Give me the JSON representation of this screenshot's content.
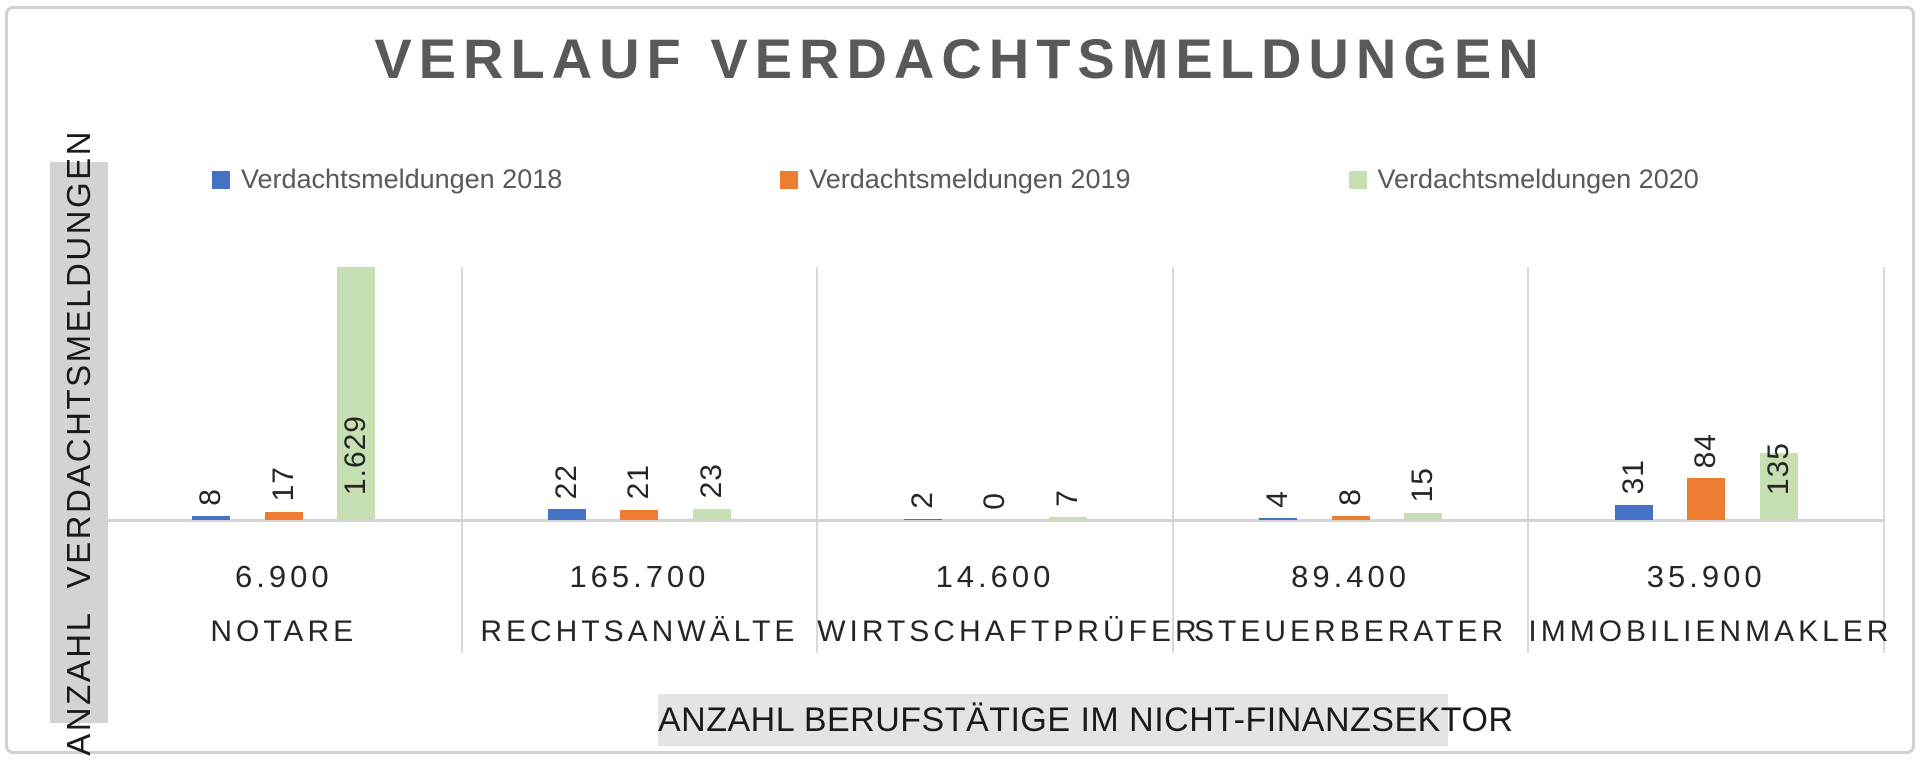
{
  "title": "VERLAUF VERDACHTSMELDUNGEN",
  "legend": [
    {
      "label": "Verdachtsmeldungen 2018",
      "color": "#4472C4"
    },
    {
      "label": "Verdachtsmeldungen 2019",
      "color": "#ED7D31"
    },
    {
      "label": "Verdachtsmeldungen 2020",
      "color": "#C6E0B4"
    }
  ],
  "axes": {
    "y_title": "ANZAHL  VERDACHTSMELDUNGEN",
    "x_title": "ANZAHL BERUFSTÄTIGE IM NICHT-FINANZSEKTOR"
  },
  "colors": {
    "series_2018": "#4472C4",
    "series_2019": "#ED7D31",
    "series_2020": "#C6E0B4",
    "title_text": "#595959",
    "legend_text": "#595959",
    "label_text": "#262626",
    "gridline": "#d9d9d9",
    "baseline": "#d4d4d4",
    "y_title_bg": "#d3d3d3",
    "x_title_bg": "#e4e4e4",
    "frame_border": "#cfd1d2"
  },
  "chart_data": {
    "type": "bar",
    "title": "VERLAUF VERDACHTSMELDUNGEN",
    "categories": [
      "NOTARE",
      "RECHTSANWÄLTE",
      "WIRTSCHAFTPRÜFER",
      "STEUERBERATER",
      "IMMOBILIENMAKLER"
    ],
    "workforce_labels": [
      "6.900",
      "165.700",
      "14.600",
      "89.400",
      "35.900"
    ],
    "series": [
      {
        "name": "Verdachtsmeldungen 2018",
        "color": "#4472C4",
        "values": [
          8,
          22,
          2,
          4,
          31
        ],
        "display": [
          "8",
          "22",
          "2",
          "4",
          "31"
        ]
      },
      {
        "name": "Verdachtsmeldungen 2019",
        "color": "#ED7D31",
        "values": [
          17,
          21,
          0,
          8,
          84
        ],
        "display": [
          "17",
          "21",
          "0",
          "8",
          "84"
        ]
      },
      {
        "name": "Verdachtsmeldungen 2020",
        "color": "#C6E0B4",
        "values": [
          1629,
          23,
          7,
          15,
          135
        ],
        "display": [
          "1.629",
          "23",
          "7",
          "15",
          "135"
        ]
      }
    ],
    "xlabel": "ANZAHL BERUFSTÄTIGE IM NICHT-FINANZSEKTOR",
    "ylabel": "ANZAHL VERDACHTSMELDUNGEN",
    "ylim": [
      0,
      500
    ],
    "y_axis_hidden": true,
    "grid": "vertical-category-separators",
    "legend_position": "top",
    "data_labels": "rotated-90-above-bars",
    "note": "NOTARE 2020 bar (1.629) is clipped at the top of the plot area"
  }
}
